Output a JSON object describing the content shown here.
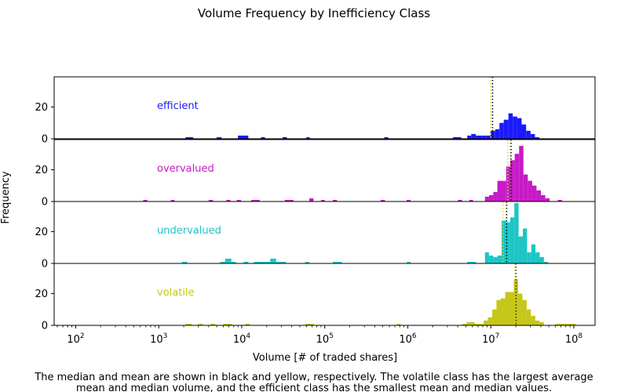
{
  "chart_data": {
    "type": "histogram",
    "title": "Volume Frequency by Inefficiency Class",
    "xlabel": "Volume [# of traded shares]",
    "ylabel": "Frequency",
    "xscale": "log",
    "xlim": [
      55,
      180000000
    ],
    "ylim": [
      0,
      39
    ],
    "xticks": [
      {
        "value": 100,
        "label": "10",
        "exp": "2"
      },
      {
        "value": 1000,
        "label": "10",
        "exp": "3"
      },
      {
        "value": 10000,
        "label": "10",
        "exp": "4"
      },
      {
        "value": 100000,
        "label": "10",
        "exp": "5"
      },
      {
        "value": 1000000,
        "label": "10",
        "exp": "6"
      },
      {
        "value": 10000000,
        "label": "10",
        "exp": "7"
      },
      {
        "value": 100000000,
        "label": "10",
        "exp": "8"
      }
    ],
    "yticks": [
      0,
      20
    ],
    "caption_lines": [
      "The median and mean are shown in black and yellow, respectively. The volatile class has the largest average",
      "mean and median volume, and the efficient class  has the smallest mean and median values."
    ],
    "median_color": "#000000",
    "mean_color": "#e6d800",
    "panels": [
      {
        "name": "efficient",
        "color": "#1a1aff",
        "median": 10500000,
        "mean": 10000000,
        "bins": [
          [
            2100,
            2600,
            1
          ],
          [
            5000,
            5700,
            1
          ],
          [
            9000,
            12000,
            2
          ],
          [
            17000,
            19000,
            1
          ],
          [
            31000,
            35000,
            1
          ],
          [
            60000,
            66000,
            1
          ],
          [
            520000,
            580000,
            1
          ],
          [
            3500000,
            4400000,
            1
          ],
          [
            5200000,
            5800000,
            2
          ],
          [
            5800000,
            6600000,
            3
          ],
          [
            6600000,
            7700000,
            2
          ],
          [
            7700000,
            8700000,
            2
          ],
          [
            8700000,
            9900000,
            2
          ],
          [
            9900000,
            11300000,
            5
          ],
          [
            11300000,
            12700000,
            6
          ],
          [
            12700000,
            14300000,
            10
          ],
          [
            14300000,
            16300000,
            12
          ],
          [
            16300000,
            18400000,
            16
          ],
          [
            18400000,
            20800000,
            14
          ],
          [
            20800000,
            23500000,
            13
          ],
          [
            23500000,
            26600000,
            9
          ],
          [
            26600000,
            30100000,
            5
          ],
          [
            30100000,
            34000000,
            3
          ],
          [
            34000000,
            38400000,
            1
          ]
        ]
      },
      {
        "name": "overvalued",
        "color": "#c61bc6",
        "median": 17500000,
        "mean": 16000000,
        "bins": [
          [
            650,
            730,
            1
          ],
          [
            1400,
            1550,
            1
          ],
          [
            4000,
            4500,
            1
          ],
          [
            6500,
            7300,
            1
          ],
          [
            8700,
            9800,
            1
          ],
          [
            13000,
            16500,
            1
          ],
          [
            33000,
            42000,
            1
          ],
          [
            65000,
            73000,
            2
          ],
          [
            90000,
            100000,
            1
          ],
          [
            125000,
            140000,
            1
          ],
          [
            470000,
            530000,
            1
          ],
          [
            970000,
            1080000,
            1
          ],
          [
            4000000,
            4500000,
            1
          ],
          [
            5500000,
            6100000,
            1
          ],
          [
            8500000,
            9500000,
            3
          ],
          [
            9500000,
            10700000,
            4
          ],
          [
            10700000,
            12000000,
            6
          ],
          [
            12000000,
            13500000,
            13
          ],
          [
            13500000,
            15300000,
            13
          ],
          [
            15300000,
            17200000,
            22
          ],
          [
            17200000,
            19400000,
            26
          ],
          [
            19400000,
            21900000,
            30
          ],
          [
            21900000,
            24700000,
            35
          ],
          [
            24700000,
            27900000,
            17
          ],
          [
            27900000,
            31500000,
            13
          ],
          [
            31500000,
            35500000,
            10
          ],
          [
            35500000,
            40100000,
            7
          ],
          [
            40100000,
            45300000,
            4
          ],
          [
            45300000,
            51100000,
            2
          ],
          [
            64000000,
            72000000,
            1
          ]
        ]
      },
      {
        "name": "undervalued",
        "color": "#1bc6c6",
        "median": 15500000,
        "mean": 14000000,
        "bins": [
          [
            1900,
            2200,
            1
          ],
          [
            5500,
            6300,
            1
          ],
          [
            6300,
            7500,
            3
          ],
          [
            7500,
            8500,
            1
          ],
          [
            10500,
            12000,
            1
          ],
          [
            14000,
            22000,
            1
          ],
          [
            22000,
            26000,
            3
          ],
          [
            26000,
            34000,
            1
          ],
          [
            58000,
            65000,
            1
          ],
          [
            125000,
            160000,
            1
          ],
          [
            970000,
            1080000,
            1
          ],
          [
            5200000,
            6600000,
            1
          ],
          [
            8500000,
            9500000,
            7
          ],
          [
            9500000,
            10700000,
            5
          ],
          [
            10700000,
            12000000,
            4
          ],
          [
            12000000,
            13500000,
            5
          ],
          [
            13500000,
            15200000,
            27
          ],
          [
            15200000,
            17100000,
            26
          ],
          [
            17100000,
            19200000,
            29
          ],
          [
            19200000,
            21600000,
            38
          ],
          [
            21600000,
            24300000,
            17
          ],
          [
            24300000,
            27300000,
            22
          ],
          [
            27300000,
            30700000,
            7
          ],
          [
            30700000,
            34500000,
            12
          ],
          [
            34500000,
            38800000,
            7
          ],
          [
            38800000,
            43600000,
            4
          ],
          [
            43600000,
            49000000,
            1
          ]
        ]
      },
      {
        "name": "volatile",
        "color": "#c6c61b",
        "median": 20000000,
        "mean": 19500000,
        "bins": [
          [
            2100,
            2500,
            1
          ],
          [
            3000,
            3400,
            1
          ],
          [
            4200,
            4800,
            1
          ],
          [
            6000,
            7600,
            1
          ],
          [
            11000,
            12500,
            1
          ],
          [
            58000,
            74000,
            1
          ],
          [
            740000,
            820000,
            1
          ],
          [
            4500000,
            5100000,
            1
          ],
          [
            5100000,
            6400000,
            2
          ],
          [
            6400000,
            8200000,
            1
          ],
          [
            8200000,
            9200000,
            3
          ],
          [
            9200000,
            10400000,
            5
          ],
          [
            10400000,
            11700000,
            10
          ],
          [
            11700000,
            13200000,
            16
          ],
          [
            13200000,
            14900000,
            17
          ],
          [
            14900000,
            16800000,
            21
          ],
          [
            16800000,
            18900000,
            21
          ],
          [
            18900000,
            21300000,
            29
          ],
          [
            21300000,
            24000000,
            20
          ],
          [
            24000000,
            27000000,
            16
          ],
          [
            27000000,
            30400000,
            10
          ],
          [
            30400000,
            34300000,
            6
          ],
          [
            34300000,
            38600000,
            3
          ],
          [
            38600000,
            43500000,
            2
          ],
          [
            60000000,
            105000000,
            1
          ]
        ]
      }
    ]
  }
}
